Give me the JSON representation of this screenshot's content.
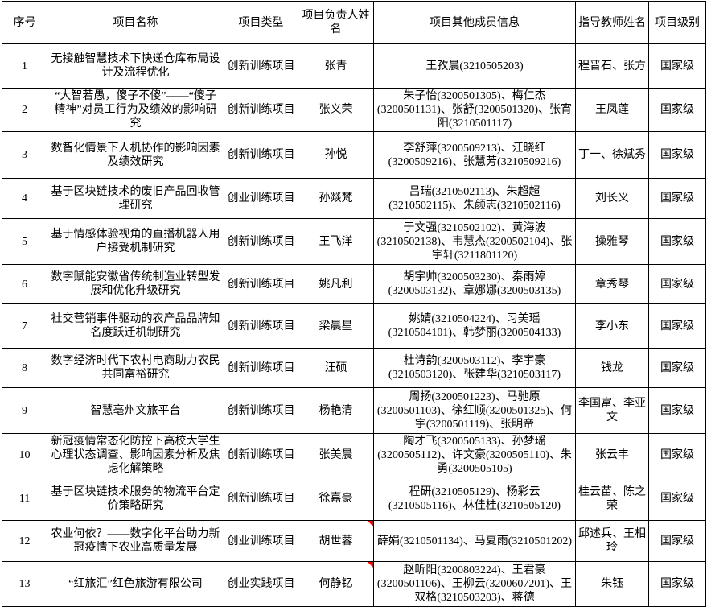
{
  "colors": {
    "border": "#000000",
    "text": "#000000",
    "background": "#ffffff",
    "comment_marker": "#ff0000"
  },
  "table": {
    "columns": [
      "序号",
      "项目名称",
      "项目类型",
      "项目负责人姓名",
      "项目其他成员信息",
      "指导教师姓名",
      "项目级别"
    ],
    "rows": [
      {
        "serial": "1",
        "project_name": "无接触智慧技术下快递仓库布局设计及流程优化",
        "project_type": "创新训练项目",
        "leader_name": "张青",
        "members": "王孜晨(3210505203)",
        "advisor": "程晋石、张方",
        "level": "国家级",
        "leader_comment_marker": false
      },
      {
        "serial": "2",
        "project_name": "“大智若愚，傻子不傻”——“傻子精神”对员工行为及绩效的影响研究",
        "project_type": "创新训练项目",
        "leader_name": "张义荣",
        "members": "朱子怡(3200501305)、梅仁杰(3200501131)、张舒(3200501320)、张宵阳(3210501117)",
        "advisor": "王凤莲",
        "level": "国家级",
        "leader_comment_marker": false
      },
      {
        "serial": "3",
        "project_name": "数智化情景下人机协作的影响因素及绩效研究",
        "project_type": "创新训练项目",
        "leader_name": "孙悦",
        "members": "李舒萍(3200509213)、汪晓红(3200509216)、张慧芳(3210509216)",
        "advisor": "丁一、徐斌秀",
        "level": "国家级",
        "leader_comment_marker": false
      },
      {
        "serial": "4",
        "project_name": "基于区块链技术的废旧产品回收管理研究",
        "project_type": "创业训练项目",
        "leader_name": "孙燚梵",
        "members": "吕瑞(3210502113)、朱超超(3210502115)、朱颜志(3210502116)",
        "advisor": "刘长义",
        "level": "国家级",
        "leader_comment_marker": false
      },
      {
        "serial": "5",
        "project_name": "基于情感体验视角的直播机器人用户接受机制研究",
        "project_type": "创新训练项目",
        "leader_name": "王飞洋",
        "members": "于文强(3210502102)、黄海波(3210502138)、韦慧杰(3200502104)、张宇轩(3211801120)",
        "advisor": "操雅琴",
        "level": "国家级",
        "leader_comment_marker": false
      },
      {
        "serial": "6",
        "project_name": "数字赋能安徽省传统制造业转型发展和优化升级研究",
        "project_type": "创新训练项目",
        "leader_name": "姚凡利",
        "members": "胡宇帅(3200503230)、秦雨婷(3200503132)、章娜娜(3200503135)",
        "advisor": "章秀琴",
        "level": "国家级",
        "leader_comment_marker": false
      },
      {
        "serial": "7",
        "project_name": "社交营销事件驱动的农产品品牌知名度跃迁机制研究",
        "project_type": "创新训练项目",
        "leader_name": "梁晨星",
        "members": "姚婧(3210504224)、习美瑶(3210504101)、韩梦丽(3200504133)",
        "advisor": "李小东",
        "level": "国家级",
        "leader_comment_marker": false
      },
      {
        "serial": "8",
        "project_name": "数字经济时代下农村电商助力农民共同富裕研究",
        "project_type": "创新训练项目",
        "leader_name": "汪硕",
        "members": "杜诗韵(3200503112)、李宇豪(3210503120)、张建华(3210503117)",
        "advisor": "钱龙",
        "level": "国家级",
        "leader_comment_marker": false
      },
      {
        "serial": "9",
        "project_name": "智慧亳州文旅平台",
        "project_type": "创新训练项目",
        "leader_name": "杨艳清",
        "members": "周扬(3200501223)、马驰原(3200501103)、徐红顺(3200501325)、何宇(3200501119)、张明帝",
        "advisor": "李国富、李亚文",
        "level": "国家级",
        "leader_comment_marker": false
      },
      {
        "serial": "10",
        "project_name": "新冠疫情常态化防控下高校大学生心理状态调查、影响因素分析及焦虑化解策略",
        "project_type": "创新训练项目",
        "leader_name": "张美晨",
        "members": "陶才飞(3200505133)、孙梦瑶(3200505112)、许文豪(3200505110)、朱勇(3200505105)",
        "advisor": "张云丰",
        "level": "国家级",
        "leader_comment_marker": false
      },
      {
        "serial": "11",
        "project_name": "基于区块链技术服务的物流平台定价策略研究",
        "project_type": "创新训练项目",
        "leader_name": "徐嘉豪",
        "members": "程研(3210505129)、杨彩云(3210505116)、林佳桂(3210505120)",
        "advisor": "桂云苗、陈之荣",
        "level": "国家级",
        "leader_comment_marker": false
      },
      {
        "serial": "12",
        "project_name": "农业何依？——数字化平台助力新冠疫情下农业高质量发展",
        "project_type": "创业训练项目",
        "leader_name": "胡世蓉",
        "members": "薛娟(3210501134)、马夏雨(3210501202)",
        "advisor": "邱述兵、王相玲",
        "level": "国家级",
        "leader_comment_marker": true
      },
      {
        "serial": "13",
        "project_name": "“红旅汇”红色旅游有限公司",
        "project_type": "创业实践项目",
        "leader_name": "何静钇",
        "members": "赵昕阳(3200803224)、王君豪(3200501106)、王柳云(3200607201)、王双格(3210503203)、蒋德",
        "advisor": "朱钰",
        "level": "国家级",
        "leader_comment_marker": true
      }
    ]
  }
}
